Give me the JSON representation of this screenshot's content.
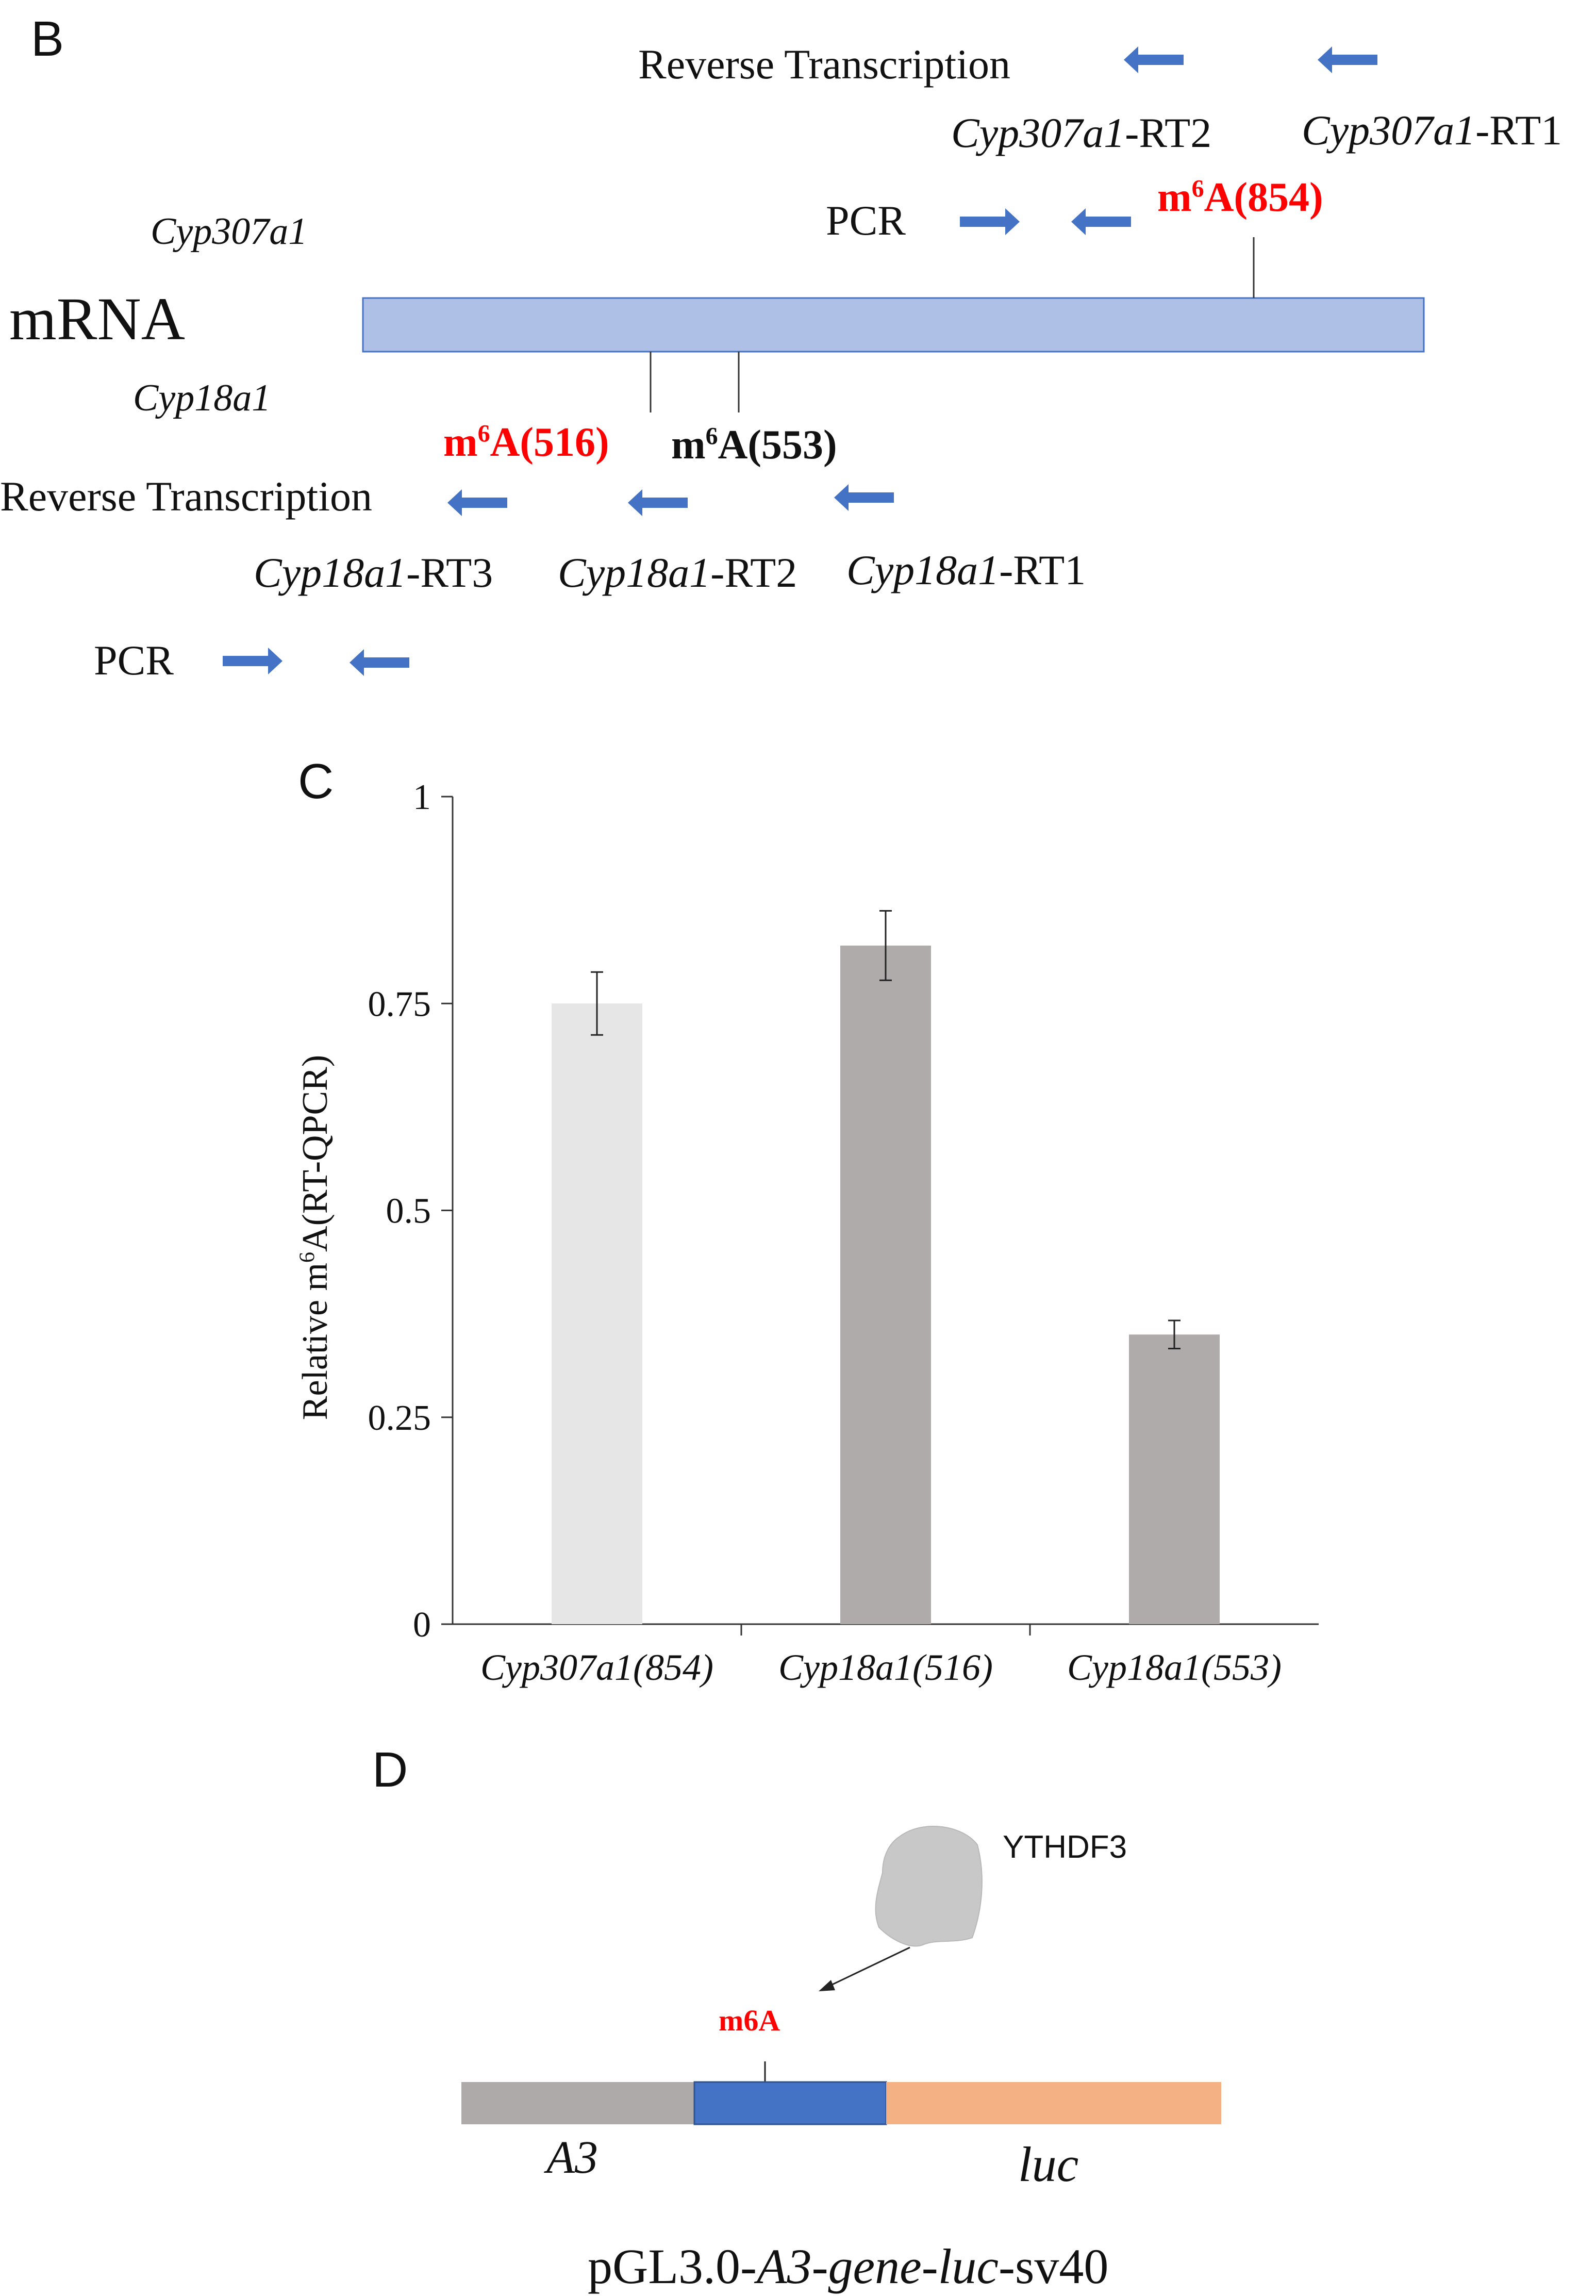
{
  "panel_b": {
    "letter": "B",
    "rt_label_top": "Reverse Transcription",
    "cyp307_gene": "Cyp307a1",
    "cyp307_rt2": {
      "gene": "Cyp307a1",
      "suffix": "-RT2"
    },
    "cyp307_rt1": {
      "gene": "Cyp307a1",
      "suffix": "-RT1"
    },
    "pcr_top": "PCR",
    "m6a_854": {
      "m": "m",
      "sup": "6",
      "rest": "A(854)"
    },
    "mrna_label": "mRNA",
    "cyp18_gene": "Cyp18a1",
    "m6a_516": {
      "m": "m",
      "sup": "6",
      "rest": "A(516)"
    },
    "m6a_553": {
      "m": "m",
      "sup": "6",
      "rest": "A(553)"
    },
    "rt_label_bottom": "Reverse Transcription",
    "cyp18_rt3": {
      "gene": "Cyp18a1",
      "suffix": "-RT3"
    },
    "cyp18_rt2": {
      "gene": "Cyp18a1",
      "suffix": "-RT2"
    },
    "cyp18_rt1": {
      "gene": "Cyp18a1",
      "suffix": "-RT1"
    },
    "pcr_bottom": "PCR",
    "colors": {
      "mrna_bar": "#aec0e6",
      "arrow": "#4472c4",
      "highlight": "#ff0000"
    }
  },
  "panel_c": {
    "letter": "C",
    "ylabel": {
      "pre": "Relative m",
      "sup": "6",
      "post": "A(RT-QPCR)"
    },
    "y_tick_labels": [
      "0",
      "0.25",
      "0.5",
      "0.75",
      "1"
    ],
    "category_labels": [
      "Cyp307a1(854)",
      "Cyp18a1(516)",
      "Cyp18a1(553)"
    ]
  },
  "chart_data": {
    "type": "bar",
    "categories": [
      "Cyp307a1(854)",
      "Cyp18a1(516)",
      "Cyp18a1(553)"
    ],
    "values": [
      0.75,
      0.82,
      0.35
    ],
    "errors": [
      0.038,
      0.042,
      0.017
    ],
    "bar_colors": [
      "#e6e6e6",
      "#b0abab",
      "#b0abab"
    ],
    "ylim": [
      0,
      1
    ],
    "yticks": [
      0,
      0.25,
      0.5,
      0.75,
      1
    ],
    "xlabel": "",
    "ylabel": "Relative m6A(RT-QPCR)",
    "grid": false,
    "legend": "none"
  },
  "panel_d": {
    "letter": "D",
    "protein_label": "YTHDF3",
    "m6a_label": "m6A",
    "a3_label": "A3",
    "luc_label": "luc",
    "construct": {
      "pre": "pGL3.0-",
      "italic": "A3-gene-luc",
      "post": "-sv40"
    },
    "colors": {
      "a3": "#aeaaaa",
      "gene": "#4472c4",
      "luc": "#f4b183",
      "protein": "#c8c8c8"
    }
  }
}
